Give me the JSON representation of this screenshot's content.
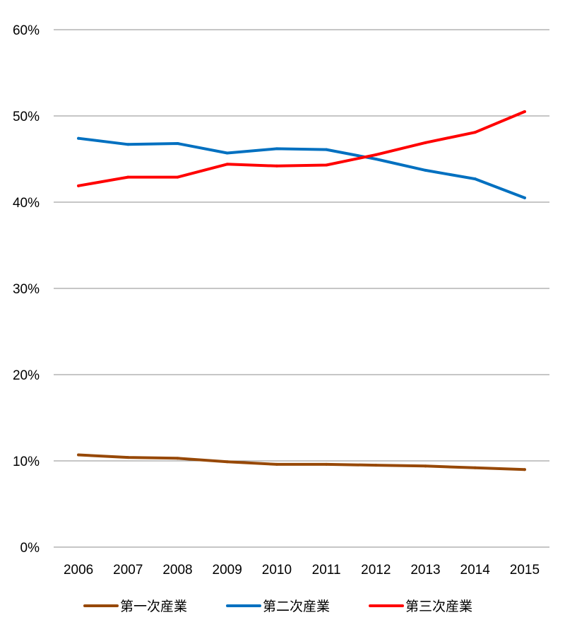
{
  "chart_data": {
    "type": "line",
    "title": "",
    "xlabel": "",
    "ylabel": "",
    "ylim": [
      0,
      60
    ],
    "y_ticks": [
      "0%",
      "10%",
      "20%",
      "30%",
      "40%",
      "50%",
      "60%"
    ],
    "y_tick_values": [
      0,
      10,
      20,
      30,
      40,
      50,
      60
    ],
    "categories": [
      "2006",
      "2007",
      "2008",
      "2009",
      "2010",
      "2011",
      "2012",
      "2013",
      "2014",
      "2015"
    ],
    "grid": true,
    "legend_position": "bottom",
    "series": [
      {
        "name": "第一次産業",
        "color": "#974806",
        "values": [
          10.7,
          10.4,
          10.3,
          9.9,
          9.6,
          9.6,
          9.5,
          9.4,
          9.2,
          9.0
        ]
      },
      {
        "name": "第二次産業",
        "color": "#0070C0",
        "values": [
          47.4,
          46.7,
          46.8,
          45.7,
          46.2,
          46.1,
          45.0,
          43.7,
          42.7,
          40.5
        ]
      },
      {
        "name": "第三次産業",
        "color": "#FF0000",
        "values": [
          41.9,
          42.9,
          42.9,
          44.4,
          44.2,
          44.3,
          45.5,
          46.9,
          48.1,
          50.5
        ]
      }
    ]
  }
}
